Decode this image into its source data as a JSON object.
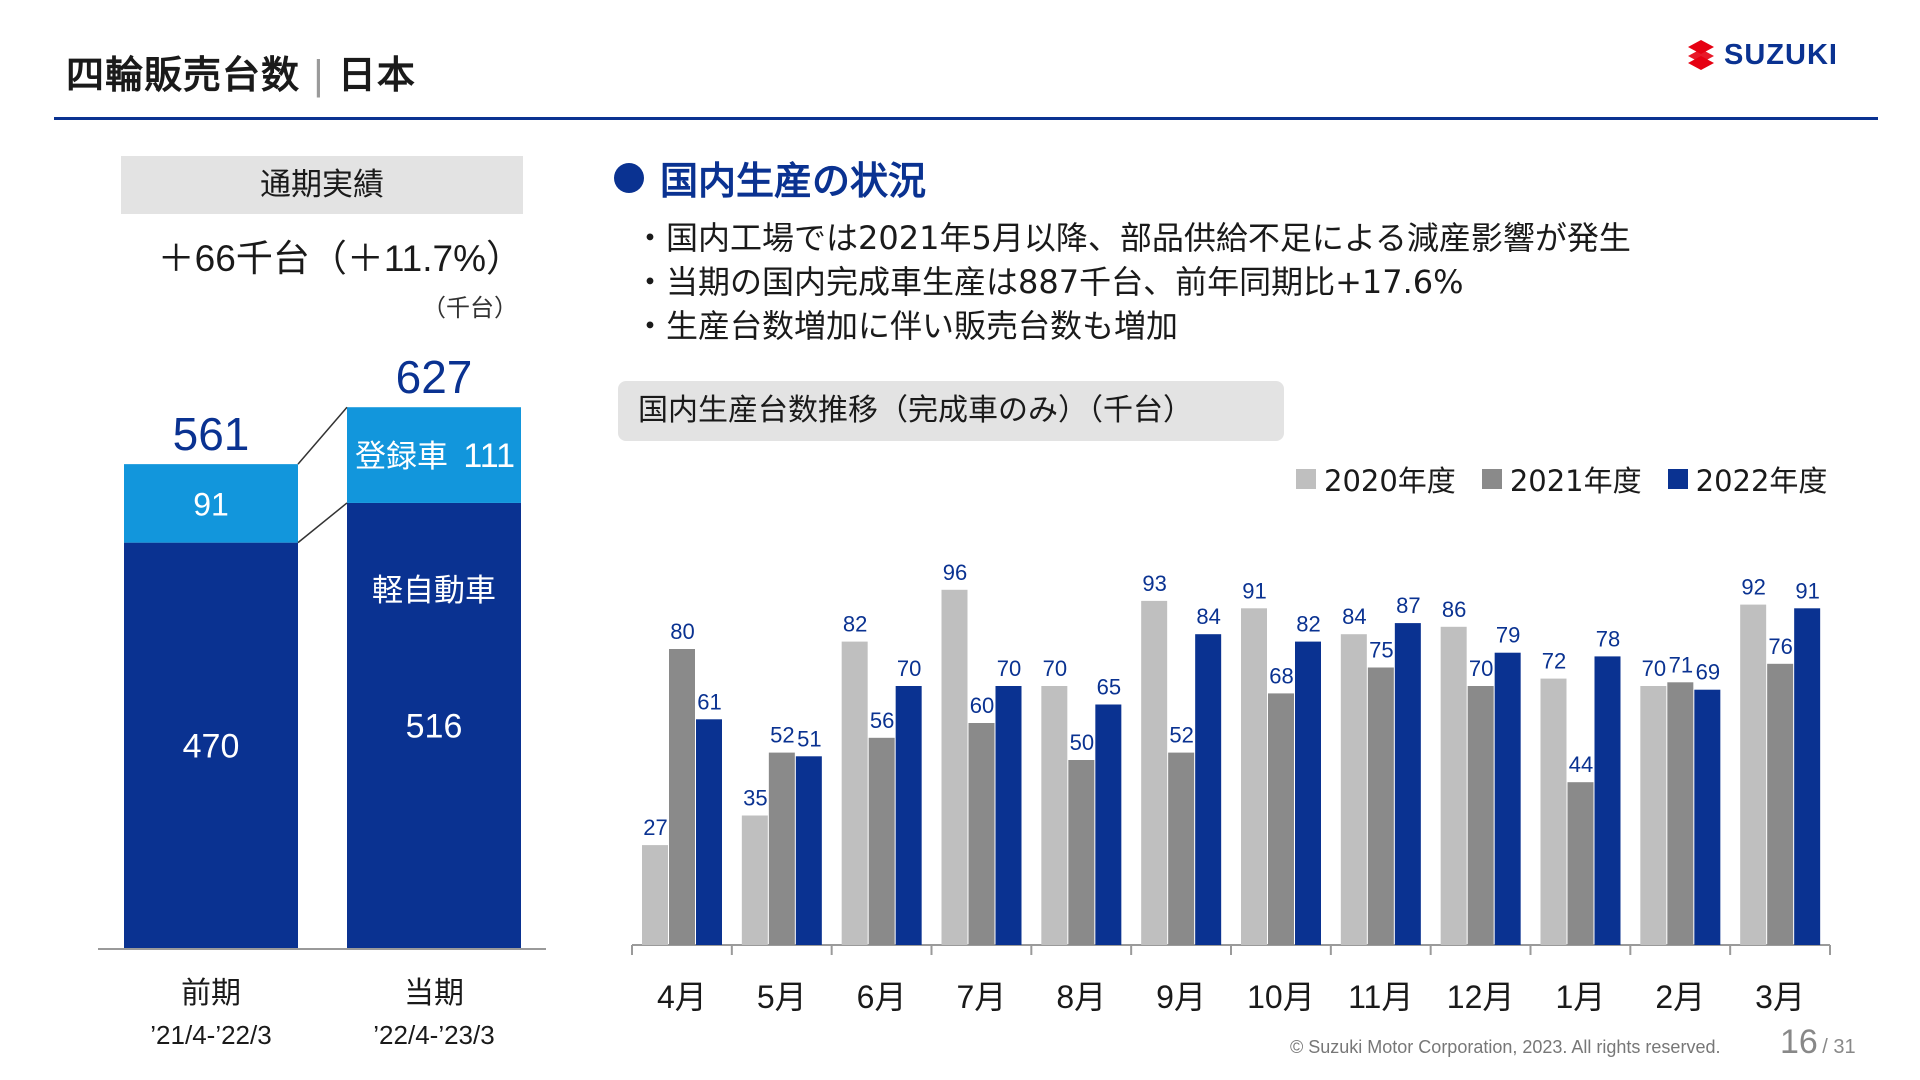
{
  "header": {
    "title_main": "四輪販売台数",
    "title_sep": "|",
    "title_region": "日本",
    "logo_text": "SUZUKI",
    "brand_color": "#0a3291"
  },
  "summary": {
    "box_label": "通期実績",
    "diff_text": "＋66千台（＋11.7%）",
    "unit": "（千台）"
  },
  "production": {
    "heading": "国内生産の状況",
    "bullets": [
      "国内工場では2021年5月以降、部品供給不足による減産影響が発生",
      "当期の国内完成車生産は887千台、前年同期比+17.6%",
      "生産台数増加に伴い販売台数も増加"
    ],
    "chart_label": "国内生産台数推移（完成車のみ）（千台）"
  },
  "footer": {
    "copyright": "© Suzuki Motor Corporation, 2023. All rights reserved.",
    "page_current": "16",
    "page_total": "/ 31"
  },
  "chart_data": [
    {
      "type": "bar",
      "stacked": true,
      "categories": [
        "前期",
        "当期"
      ],
      "sublabels": [
        "’21/4-’22/3",
        "’22/4-’23/3"
      ],
      "totals": [
        561,
        627
      ],
      "series": [
        {
          "name": "軽自動車",
          "values": [
            470,
            516
          ],
          "color": "#0a3291"
        },
        {
          "name": "登録車",
          "values": [
            91,
            111
          ],
          "color": "#1296dc"
        }
      ],
      "ylim": [
        0,
        660
      ]
    },
    {
      "type": "bar",
      "categories": [
        "4月",
        "5月",
        "6月",
        "7月",
        "8月",
        "9月",
        "10月",
        "11月",
        "12月",
        "1月",
        "2月",
        "3月"
      ],
      "series": [
        {
          "name": "2020年度",
          "values": [
            27,
            35,
            82,
            96,
            70,
            93,
            91,
            84,
            86,
            72,
            70,
            92
          ],
          "color": "#bfbfbf"
        },
        {
          "name": "2021年度",
          "values": [
            80,
            52,
            56,
            60,
            50,
            52,
            68,
            75,
            70,
            44,
            71,
            76
          ],
          "color": "#8a8a8a"
        },
        {
          "name": "2022年度",
          "values": [
            61,
            51,
            70,
            70,
            65,
            84,
            82,
            87,
            79,
            78,
            69,
            91
          ],
          "color": "#0a3291"
        }
      ],
      "ylim": [
        0,
        105
      ],
      "legend": "top-right",
      "label_color": "#0a3291"
    }
  ]
}
